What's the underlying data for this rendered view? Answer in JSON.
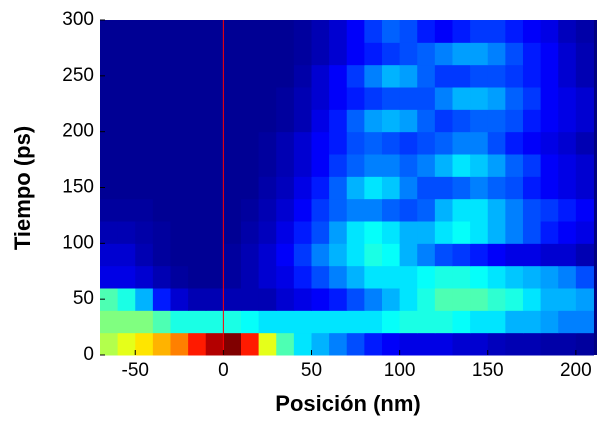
{
  "chart_data": {
    "type": "heatmap",
    "xlabel": "Posición (nm)",
    "ylabel": "Tiempo (ps)",
    "xlim": [
      -70,
      212
    ],
    "ylim": [
      0,
      300
    ],
    "xticks": [
      -50,
      0,
      50,
      100,
      150,
      200
    ],
    "yticks": [
      0,
      50,
      100,
      150,
      200,
      250,
      300
    ],
    "zlim": [
      0,
      1
    ],
    "colormap": "jet",
    "vlines": [
      0
    ],
    "vline_color": "#ff0000",
    "x_bins": [
      -70,
      -60,
      -50,
      -40,
      -30,
      -20,
      -10,
      0,
      10,
      20,
      30,
      40,
      50,
      60,
      70,
      80,
      90,
      100,
      110,
      120,
      130,
      140,
      150,
      160,
      170,
      180,
      190,
      200,
      210
    ],
    "y_bins": [
      0,
      20,
      40,
      60,
      80,
      100,
      120,
      140,
      160,
      180,
      200,
      220,
      240,
      260,
      280,
      300
    ],
    "z": [
      [
        0.55,
        0.6,
        0.65,
        0.7,
        0.75,
        0.85,
        0.95,
        1.0,
        0.85,
        0.6,
        0.45,
        0.35,
        0.3,
        0.25,
        0.2,
        0.15,
        0.12,
        0.1,
        0.1,
        0.1,
        0.08,
        0.08,
        0.06,
        0.05,
        0.05,
        0.04,
        0.04,
        0.03
      ],
      [
        0.5,
        0.5,
        0.5,
        0.45,
        0.4,
        0.4,
        0.4,
        0.4,
        0.38,
        0.35,
        0.35,
        0.35,
        0.35,
        0.35,
        0.35,
        0.35,
        0.38,
        0.4,
        0.4,
        0.4,
        0.38,
        0.35,
        0.35,
        0.3,
        0.3,
        0.28,
        0.25,
        0.25
      ],
      [
        0.45,
        0.4,
        0.3,
        0.15,
        0.08,
        0.05,
        0.05,
        0.05,
        0.05,
        0.05,
        0.08,
        0.1,
        0.12,
        0.15,
        0.2,
        0.25,
        0.3,
        0.35,
        0.4,
        0.45,
        0.45,
        0.45,
        0.42,
        0.4,
        0.35,
        0.3,
        0.3,
        0.28
      ],
      [
        0.1,
        0.1,
        0.08,
        0.05,
        0.03,
        0.02,
        0.02,
        0.03,
        0.05,
        0.08,
        0.1,
        0.15,
        0.2,
        0.25,
        0.3,
        0.35,
        0.35,
        0.35,
        0.38,
        0.4,
        0.4,
        0.38,
        0.35,
        0.32,
        0.3,
        0.28,
        0.25,
        0.2
      ],
      [
        0.08,
        0.08,
        0.05,
        0.03,
        0.02,
        0.02,
        0.02,
        0.03,
        0.05,
        0.08,
        0.12,
        0.18,
        0.25,
        0.3,
        0.35,
        0.4,
        0.38,
        0.3,
        0.25,
        0.2,
        0.18,
        0.15,
        0.12,
        0.1,
        0.1,
        0.08,
        0.08,
        0.05
      ],
      [
        0.05,
        0.05,
        0.04,
        0.03,
        0.02,
        0.02,
        0.02,
        0.02,
        0.04,
        0.06,
        0.1,
        0.15,
        0.2,
        0.28,
        0.35,
        0.38,
        0.35,
        0.3,
        0.3,
        0.35,
        0.38,
        0.35,
        0.3,
        0.25,
        0.2,
        0.15,
        0.12,
        0.1
      ],
      [
        0.03,
        0.03,
        0.03,
        0.02,
        0.02,
        0.02,
        0.02,
        0.02,
        0.03,
        0.05,
        0.08,
        0.12,
        0.18,
        0.22,
        0.25,
        0.25,
        0.22,
        0.2,
        0.22,
        0.3,
        0.35,
        0.35,
        0.3,
        0.25,
        0.2,
        0.18,
        0.15,
        0.12
      ],
      [
        0.02,
        0.02,
        0.02,
        0.02,
        0.02,
        0.02,
        0.02,
        0.02,
        0.02,
        0.04,
        0.06,
        0.1,
        0.15,
        0.22,
        0.3,
        0.35,
        0.32,
        0.25,
        0.2,
        0.2,
        0.22,
        0.25,
        0.22,
        0.2,
        0.15,
        0.12,
        0.1,
        0.08
      ],
      [
        0.02,
        0.02,
        0.02,
        0.02,
        0.02,
        0.02,
        0.02,
        0.02,
        0.02,
        0.03,
        0.05,
        0.08,
        0.12,
        0.18,
        0.22,
        0.25,
        0.25,
        0.22,
        0.25,
        0.3,
        0.35,
        0.32,
        0.28,
        0.22,
        0.18,
        0.12,
        0.1,
        0.08
      ],
      [
        0.02,
        0.02,
        0.02,
        0.02,
        0.02,
        0.02,
        0.02,
        0.02,
        0.02,
        0.03,
        0.05,
        0.08,
        0.12,
        0.15,
        0.2,
        0.22,
        0.2,
        0.18,
        0.2,
        0.22,
        0.25,
        0.25,
        0.2,
        0.15,
        0.12,
        0.1,
        0.08,
        0.05
      ],
      [
        0.02,
        0.02,
        0.02,
        0.02,
        0.02,
        0.02,
        0.02,
        0.02,
        0.02,
        0.02,
        0.03,
        0.05,
        0.1,
        0.15,
        0.22,
        0.28,
        0.3,
        0.28,
        0.22,
        0.18,
        0.2,
        0.22,
        0.22,
        0.2,
        0.15,
        0.12,
        0.1,
        0.08
      ],
      [
        0.02,
        0.02,
        0.02,
        0.02,
        0.02,
        0.02,
        0.02,
        0.02,
        0.02,
        0.02,
        0.03,
        0.05,
        0.08,
        0.12,
        0.15,
        0.18,
        0.2,
        0.2,
        0.2,
        0.25,
        0.3,
        0.3,
        0.28,
        0.22,
        0.18,
        0.12,
        0.1,
        0.08
      ],
      [
        0.02,
        0.02,
        0.02,
        0.02,
        0.02,
        0.02,
        0.02,
        0.02,
        0.02,
        0.02,
        0.02,
        0.04,
        0.08,
        0.12,
        0.18,
        0.25,
        0.3,
        0.28,
        0.22,
        0.18,
        0.18,
        0.2,
        0.2,
        0.18,
        0.15,
        0.12,
        0.08,
        0.05
      ],
      [
        0.02,
        0.02,
        0.02,
        0.02,
        0.02,
        0.02,
        0.02,
        0.02,
        0.02,
        0.02,
        0.02,
        0.03,
        0.05,
        0.08,
        0.12,
        0.15,
        0.18,
        0.2,
        0.22,
        0.25,
        0.28,
        0.28,
        0.25,
        0.2,
        0.15,
        0.12,
        0.08,
        0.05
      ],
      [
        0.02,
        0.02,
        0.02,
        0.02,
        0.02,
        0.02,
        0.02,
        0.02,
        0.02,
        0.02,
        0.02,
        0.03,
        0.05,
        0.08,
        0.12,
        0.18,
        0.22,
        0.2,
        0.15,
        0.12,
        0.15,
        0.18,
        0.18,
        0.15,
        0.12,
        0.1,
        0.06,
        0.04
      ]
    ]
  }
}
